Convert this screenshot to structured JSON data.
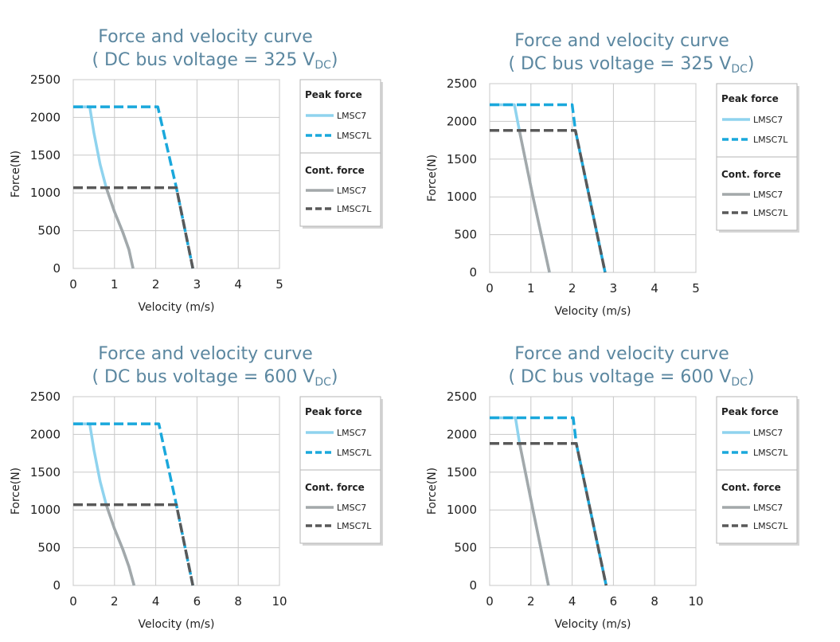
{
  "chart_data": [
    {
      "type": "line",
      "title_line1": "Force and velocity curve",
      "title_line2_prefix": "( DC bus voltage = 325 V",
      "title_line2_sub": "DC",
      "title_line2_suffix": ")",
      "xlabel": "Velocity (m/s)",
      "ylabel": "Force(N)",
      "xlim": [
        0,
        5
      ],
      "ylim": [
        0,
        2500
      ],
      "xticks": [
        "0",
        "1",
        "2",
        "3",
        "4",
        "5"
      ],
      "yticks": [
        "0",
        "500",
        "1000",
        "1500",
        "2000",
        "2500"
      ],
      "legend": {
        "peak_heading": "Peak force",
        "cont_heading": "Cont. force",
        "peak_items": [
          "LMSC7",
          "LMSC7L"
        ],
        "cont_items": [
          "LMSC7",
          "LMSC7L"
        ]
      },
      "series": [
        {
          "name": "Peak force LMSC7",
          "color": "#8fd3ee",
          "dash": false,
          "points": [
            [
              0,
              2140
            ],
            [
              0.4,
              2140
            ],
            [
              0.5,
              1800
            ],
            [
              0.65,
              1380
            ],
            [
              0.8,
              1070
            ],
            [
              1.0,
              750
            ],
            [
              1.2,
              480
            ],
            [
              1.35,
              250
            ],
            [
              1.45,
              0
            ]
          ]
        },
        {
          "name": "Peak force LMSC7L",
          "color": "#1aa8dc",
          "dash": true,
          "points": [
            [
              0,
              2140
            ],
            [
              2.05,
              2140
            ],
            [
              2.5,
              1070
            ],
            [
              2.9,
              0
            ]
          ]
        },
        {
          "name": "Cont. force LMSC7",
          "color": "#a3a8aa",
          "dash": false,
          "points": [
            [
              0.8,
              1070
            ],
            [
              1.0,
              750
            ],
            [
              1.2,
              480
            ],
            [
              1.35,
              250
            ],
            [
              1.45,
              0
            ]
          ]
        },
        {
          "name": "Cont. force LMSC7L",
          "color": "#595959",
          "dash": true,
          "points": [
            [
              0,
              1070
            ],
            [
              2.5,
              1070
            ],
            [
              2.9,
              0
            ]
          ]
        }
      ]
    },
    {
      "type": "line",
      "title_line1": "Force and velocity curve",
      "title_line2_prefix": "( DC bus voltage = 325 V",
      "title_line2_sub": "DC",
      "title_line2_suffix": ")",
      "xlabel": "Velocity (m/s)",
      "ylabel": "Force(N)",
      "xlim": [
        0,
        5
      ],
      "ylim": [
        0,
        2500
      ],
      "xticks": [
        "0",
        "1",
        "2",
        "3",
        "4",
        "5"
      ],
      "yticks": [
        "0",
        "500",
        "1000",
        "1500",
        "2000",
        "2500"
      ],
      "legend": {
        "peak_heading": "Peak force",
        "cont_heading": "Cont. force",
        "peak_items": [
          "LMSC7",
          "LMSC7L"
        ],
        "cont_items": [
          "LMSC7",
          "LMSC7L"
        ]
      },
      "series": [
        {
          "name": "Peak force LMSC7",
          "color": "#8fd3ee",
          "dash": false,
          "points": [
            [
              0,
              2220
            ],
            [
              0.6,
              2220
            ],
            [
              0.72,
              1880
            ],
            [
              1.05,
              1000
            ],
            [
              1.45,
              0
            ]
          ]
        },
        {
          "name": "Peak force LMSC7L",
          "color": "#1aa8dc",
          "dash": true,
          "points": [
            [
              0,
              2220
            ],
            [
              2.0,
              2220
            ],
            [
              2.08,
              1880
            ],
            [
              2.8,
              0
            ]
          ]
        },
        {
          "name": "Cont. force LMSC7",
          "color": "#a3a8aa",
          "dash": false,
          "points": [
            [
              0.72,
              1880
            ],
            [
              1.05,
              1000
            ],
            [
              1.45,
              0
            ]
          ]
        },
        {
          "name": "Cont. force LMSC7L",
          "color": "#595959",
          "dash": true,
          "points": [
            [
              0,
              1880
            ],
            [
              2.08,
              1880
            ],
            [
              2.8,
              0
            ]
          ]
        }
      ]
    },
    {
      "type": "line",
      "title_line1": "Force and velocity curve",
      "title_line2_prefix": "( DC bus voltage = 600 V",
      "title_line2_sub": "DC",
      "title_line2_suffix": ")",
      "xlabel": "Velocity (m/s)",
      "ylabel": "Force(N)",
      "xlim": [
        0,
        10
      ],
      "ylim": [
        0,
        2500
      ],
      "xticks": [
        "0",
        "2",
        "4",
        "6",
        "8",
        "10"
      ],
      "yticks": [
        "0",
        "500",
        "1000",
        "1500",
        "2000",
        "2500"
      ],
      "legend": {
        "peak_heading": "Peak force",
        "cont_heading": "Cont. force",
        "peak_items": [
          "LMSC7",
          "LMSC7L"
        ],
        "cont_items": [
          "LMSC7",
          "LMSC7L"
        ]
      },
      "series": [
        {
          "name": "Peak force LMSC7",
          "color": "#8fd3ee",
          "dash": false,
          "points": [
            [
              0,
              2140
            ],
            [
              0.8,
              2140
            ],
            [
              1.0,
              1800
            ],
            [
              1.3,
              1380
            ],
            [
              1.6,
              1070
            ],
            [
              2.0,
              750
            ],
            [
              2.4,
              480
            ],
            [
              2.7,
              250
            ],
            [
              2.95,
              0
            ]
          ]
        },
        {
          "name": "Peak force LMSC7L",
          "color": "#1aa8dc",
          "dash": true,
          "points": [
            [
              0,
              2140
            ],
            [
              4.15,
              2140
            ],
            [
              5.0,
              1070
            ],
            [
              5.8,
              0
            ]
          ]
        },
        {
          "name": "Cont. force LMSC7",
          "color": "#a3a8aa",
          "dash": false,
          "points": [
            [
              1.6,
              1070
            ],
            [
              2.0,
              750
            ],
            [
              2.4,
              480
            ],
            [
              2.7,
              250
            ],
            [
              2.95,
              0
            ]
          ]
        },
        {
          "name": "Cont. force LMSC7L",
          "color": "#595959",
          "dash": true,
          "points": [
            [
              0,
              1070
            ],
            [
              5.0,
              1070
            ],
            [
              5.8,
              0
            ]
          ]
        }
      ]
    },
    {
      "type": "line",
      "title_line1": "Force and velocity curve",
      "title_line2_prefix": "( DC bus voltage = 600 V",
      "title_line2_sub": "DC",
      "title_line2_suffix": ")",
      "xlabel": "Velocity (m/s)",
      "ylabel": "Force(N)",
      "xlim": [
        0,
        10
      ],
      "ylim": [
        0,
        2500
      ],
      "xticks": [
        "0",
        "2",
        "4",
        "6",
        "8",
        "10"
      ],
      "yticks": [
        "0",
        "500",
        "1000",
        "1500",
        "2000",
        "2500"
      ],
      "legend": {
        "peak_heading": "Peak force",
        "cont_heading": "Cont. force",
        "peak_items": [
          "LMSC7",
          "LMSC7L"
        ],
        "cont_items": [
          "LMSC7",
          "LMSC7L"
        ]
      },
      "series": [
        {
          "name": "Peak force LMSC7",
          "color": "#8fd3ee",
          "dash": false,
          "points": [
            [
              0,
              2220
            ],
            [
              1.25,
              2220
            ],
            [
              1.45,
              1880
            ],
            [
              2.1,
              1000
            ],
            [
              2.85,
              0
            ]
          ]
        },
        {
          "name": "Peak force LMSC7L",
          "color": "#1aa8dc",
          "dash": true,
          "points": [
            [
              0,
              2220
            ],
            [
              4.05,
              2220
            ],
            [
              4.2,
              1880
            ],
            [
              5.65,
              0
            ]
          ]
        },
        {
          "name": "Cont. force LMSC7",
          "color": "#a3a8aa",
          "dash": false,
          "points": [
            [
              1.45,
              1880
            ],
            [
              2.1,
              1000
            ],
            [
              2.85,
              0
            ]
          ]
        },
        {
          "name": "Cont. force LMSC7L",
          "color": "#595959",
          "dash": true,
          "points": [
            [
              0,
              1880
            ],
            [
              4.2,
              1880
            ],
            [
              5.65,
              0
            ]
          ]
        }
      ]
    }
  ]
}
